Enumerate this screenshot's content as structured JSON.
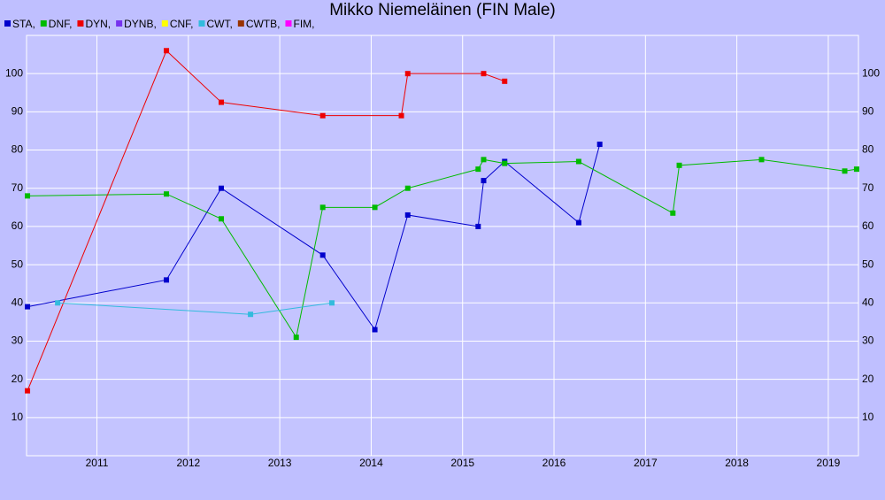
{
  "chart_data": {
    "type": "line",
    "title": "Mikko Niemeläinen (FIN Male)",
    "xlim": [
      2010.23,
      2019.33
    ],
    "xticks": [
      2011,
      2012,
      2013,
      2014,
      2015,
      2016,
      2017,
      2018,
      2019
    ],
    "ylim": [
      0,
      110
    ],
    "yticks": [
      10,
      20,
      30,
      40,
      50,
      60,
      70,
      80,
      90,
      100
    ],
    "grid": true,
    "series": [
      {
        "name": "STA,",
        "color": "#0000cc",
        "x": [
          2010.24,
          2011.76,
          2012.36,
          2013.47,
          2014.04,
          2014.4,
          2015.17,
          2015.23,
          2015.46,
          2016.27,
          2016.5
        ],
        "values": [
          39,
          46,
          70,
          52.5,
          33,
          63,
          60,
          72,
          77,
          61,
          81.5
        ]
      },
      {
        "name": "DNF,",
        "color": "#00bb00",
        "x": [
          2010.24,
          2011.76,
          2012.36,
          2013.18,
          2013.47,
          2014.04,
          2014.4,
          2015.17,
          2015.23,
          2015.46,
          2016.27,
          2017.3,
          2017.37,
          2018.27,
          2019.18,
          2019.31
        ],
        "values": [
          68,
          68.5,
          62,
          31,
          65,
          65,
          70,
          75,
          77.5,
          76.5,
          77,
          63.5,
          76,
          77.5,
          74.5,
          75
        ]
      },
      {
        "name": "DYN,",
        "color": "#ee0000",
        "x": [
          2010.24,
          2011.76,
          2012.36,
          2013.47,
          2014.33,
          2014.4,
          2015.23,
          2015.46
        ],
        "values": [
          17,
          106,
          92.5,
          89,
          89,
          100,
          100,
          98
        ]
      },
      {
        "name": "DYNB,",
        "color": "#7733ee",
        "x": [],
        "values": []
      },
      {
        "name": "CNF,",
        "color": "#ffff00",
        "x": [],
        "values": []
      },
      {
        "name": "CWT,",
        "color": "#33bbdd",
        "x": [
          2010.57,
          2012.68,
          2013.57
        ],
        "values": [
          40,
          37,
          40
        ]
      },
      {
        "name": "CWTB,",
        "color": "#993300",
        "x": [],
        "values": []
      },
      {
        "name": "FIM,",
        "color": "#ff00ff",
        "x": [],
        "values": []
      }
    ]
  }
}
